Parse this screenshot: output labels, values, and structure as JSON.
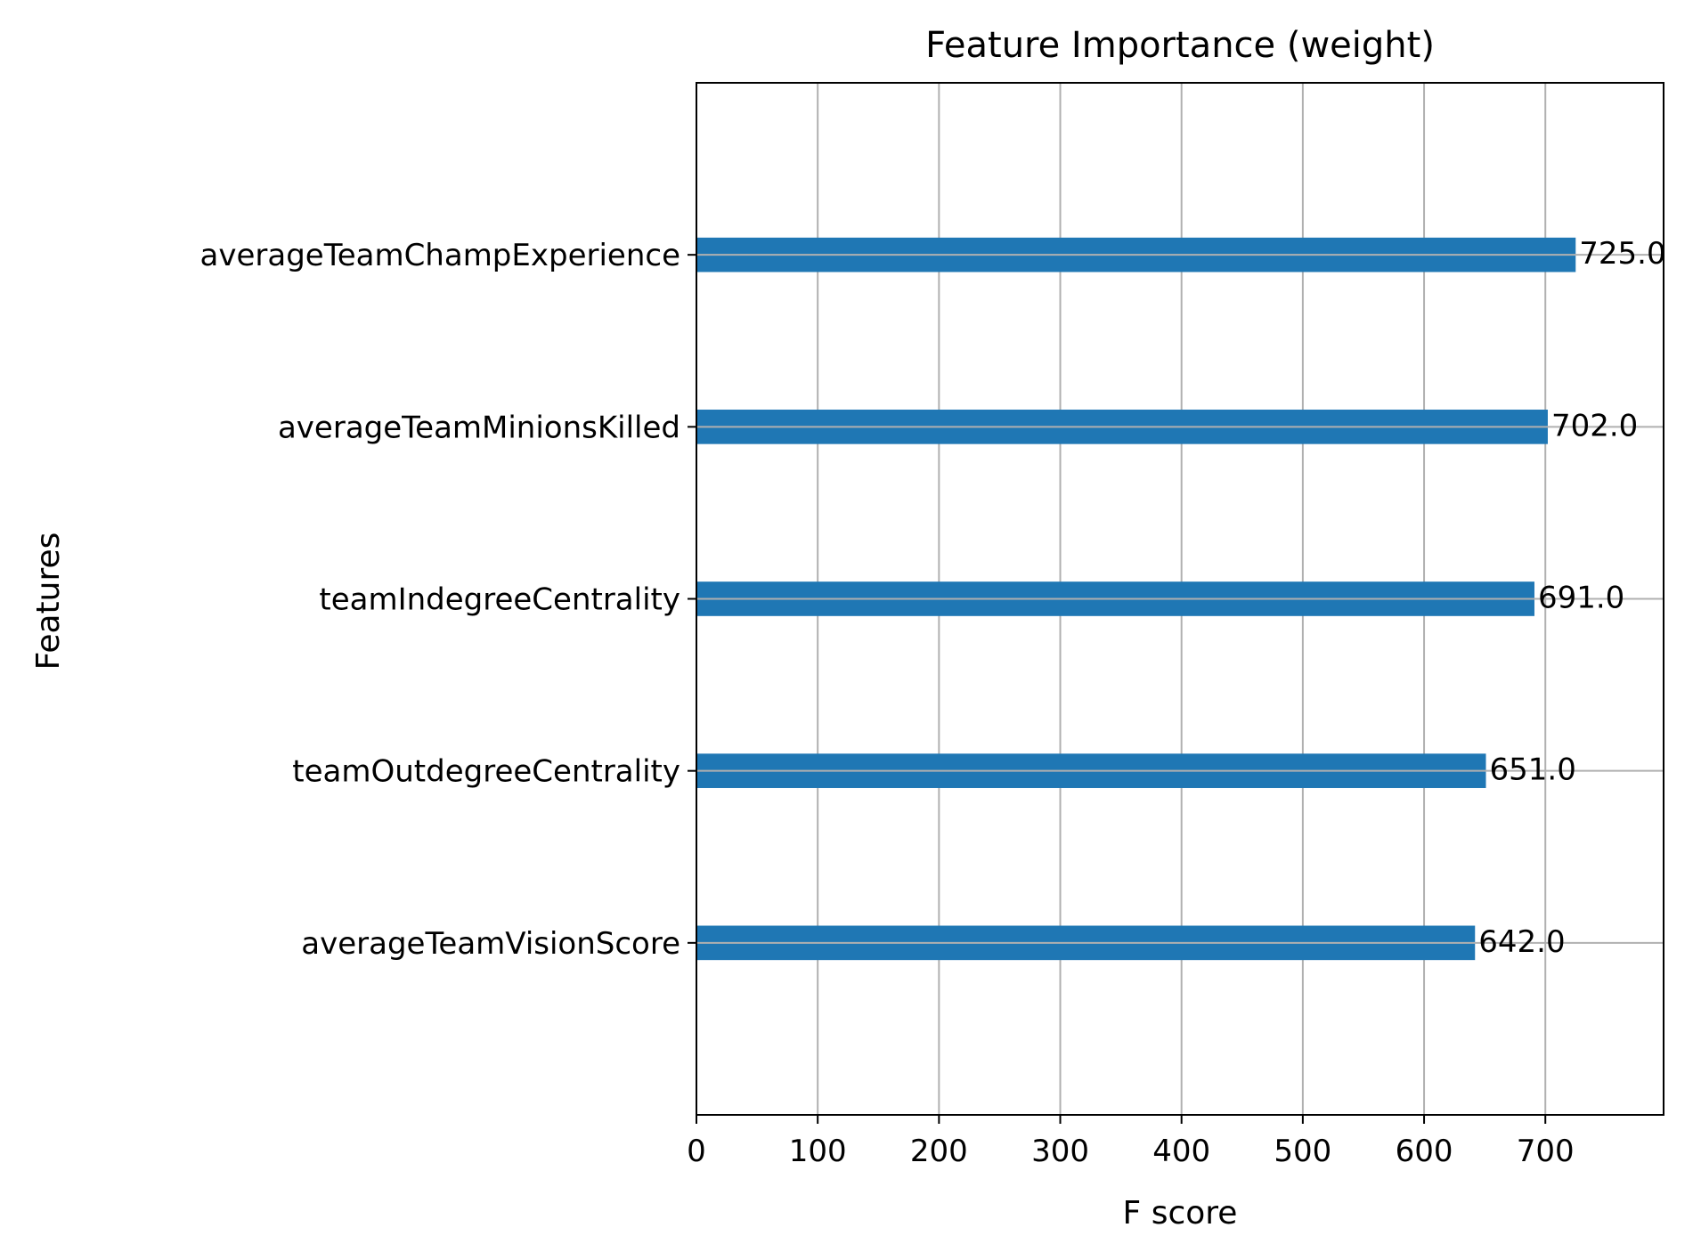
{
  "chart_data": {
    "type": "bar",
    "orientation": "horizontal",
    "title": "Feature Importance (weight)",
    "xlabel": "F score",
    "ylabel": "Features",
    "categories": [
      "averageTeamVisionScore",
      "teamOutdegreeCentrality",
      "teamIndegreeCentrality",
      "averageTeamMinionsKilled",
      "averageTeamChampExperience"
    ],
    "values": [
      642.0,
      651.0,
      691.0,
      702.0,
      725.0
    ],
    "value_labels": [
      "642.0",
      "651.0",
      "691.0",
      "702.0",
      "725.0"
    ],
    "xlim": [
      0,
      797.5
    ],
    "xticks": [
      0,
      100,
      200,
      300,
      400,
      500,
      600,
      700
    ],
    "xtick_labels": [
      "0",
      "100",
      "200",
      "300",
      "400",
      "500",
      "600",
      "700"
    ],
    "grid": true,
    "bar_color": "#1f77b4",
    "grid_color": "#b0b0b0"
  }
}
